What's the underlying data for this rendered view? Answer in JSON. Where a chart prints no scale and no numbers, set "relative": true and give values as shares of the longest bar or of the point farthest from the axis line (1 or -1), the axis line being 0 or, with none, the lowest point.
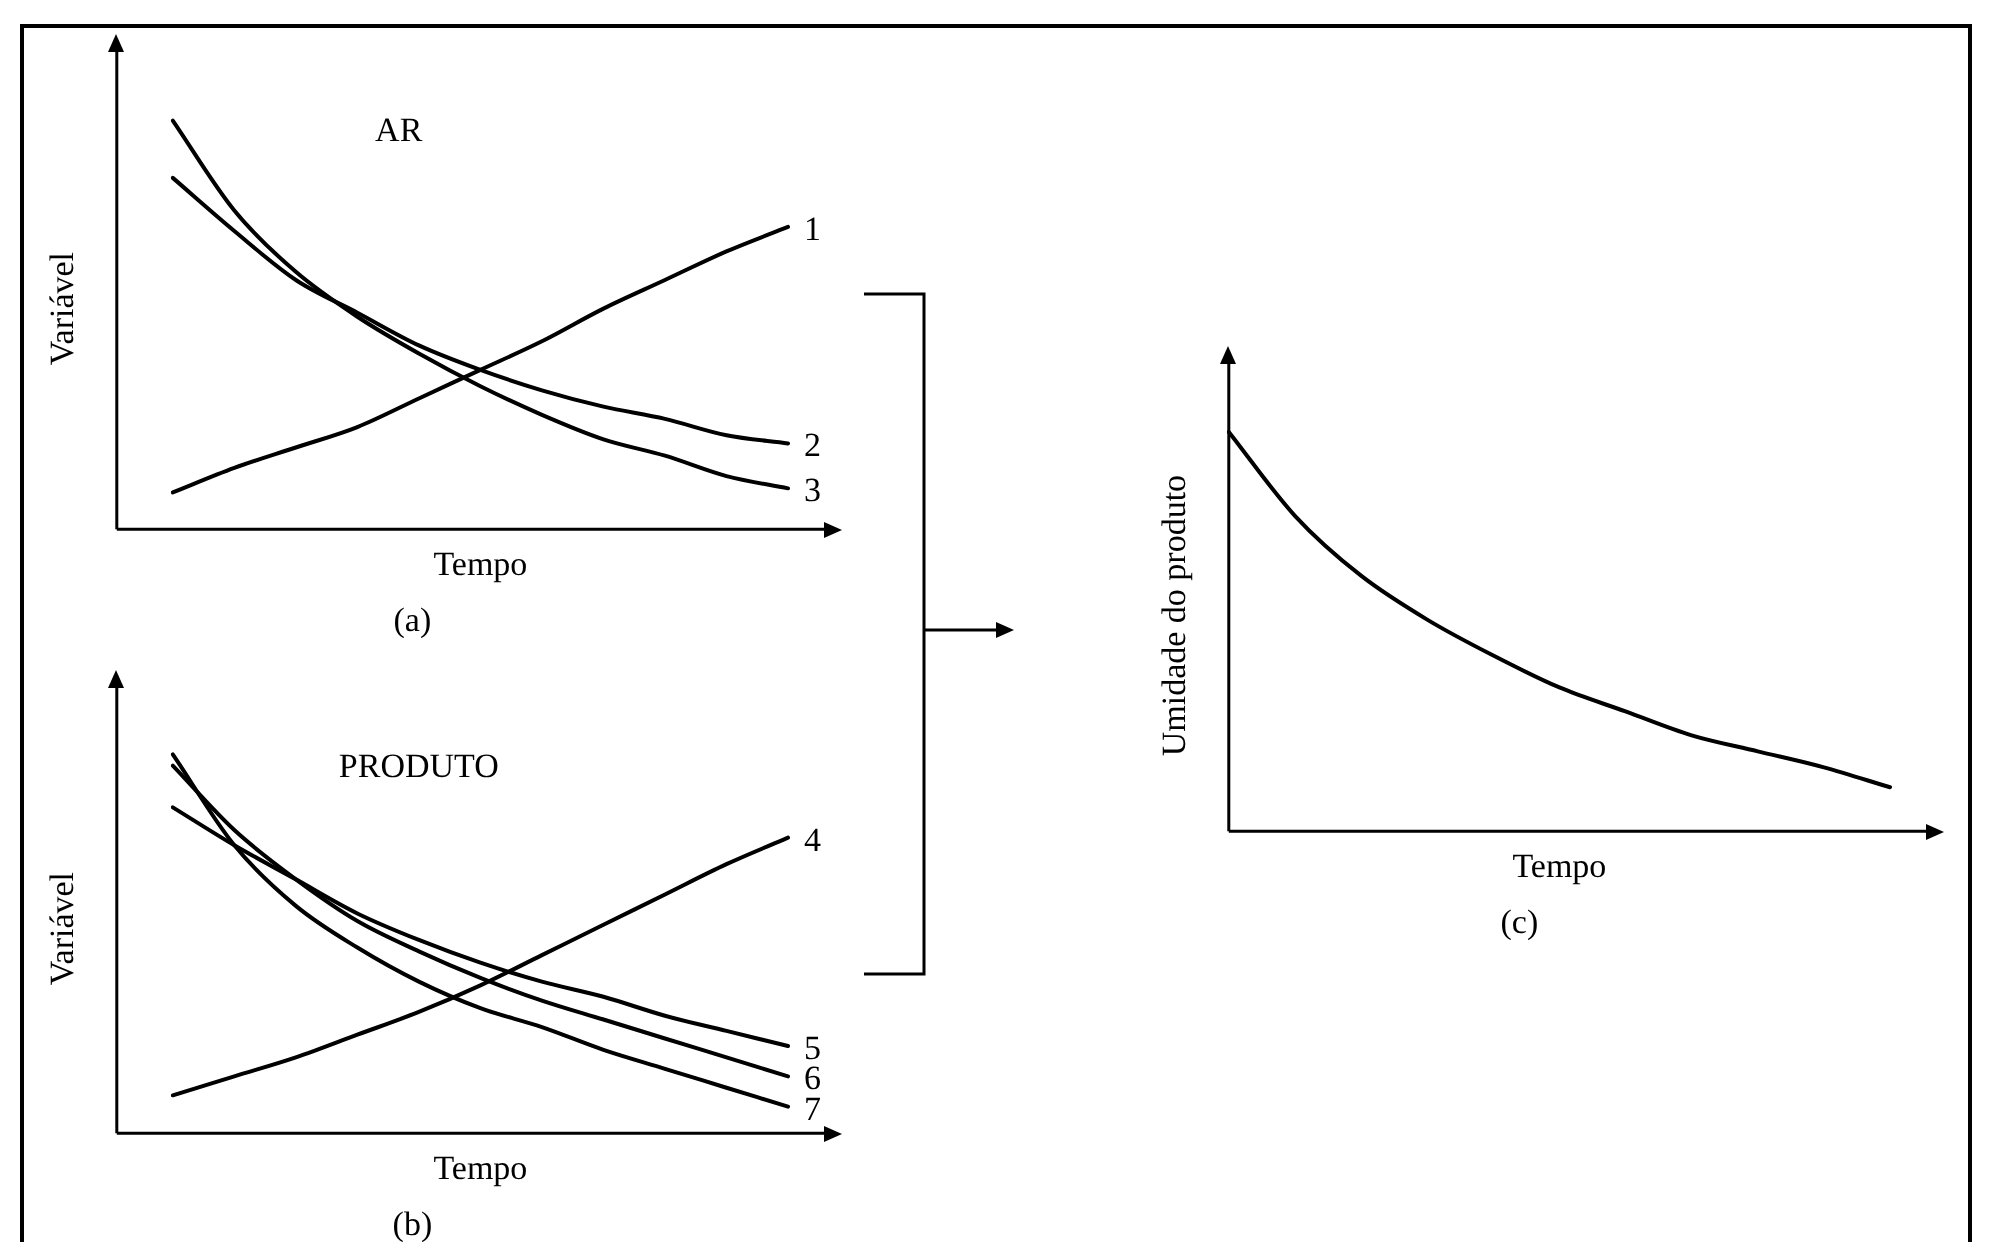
{
  "chart_data": [
    {
      "type": "line",
      "title": "AR",
      "xlabel": "Tempo",
      "ylabel": "Variável",
      "annotations": [
        "(a)"
      ],
      "relative": true,
      "tick_labels": false,
      "categories": [
        null,
        null,
        null,
        null,
        null,
        null,
        null,
        null,
        null,
        null,
        null
      ],
      "series": [
        {
          "name": "1",
          "color": "#000000",
          "values": [
            0.09,
            0.15,
            0.2,
            0.25,
            0.32,
            0.39,
            0.46,
            0.54,
            0.61,
            0.68,
            0.74
          ]
        },
        {
          "name": "2",
          "color": "#000000",
          "values": [
            0.86,
            0.73,
            0.61,
            0.53,
            0.45,
            0.39,
            0.34,
            0.3,
            0.27,
            0.23,
            0.21
          ]
        },
        {
          "name": "3",
          "color": "#000000",
          "values": [
            1,
            0.78,
            0.63,
            0.52,
            0.43,
            0.35,
            0.28,
            0.22,
            0.18,
            0.13,
            0.1
          ]
        }
      ]
    },
    {
      "type": "line",
      "title": "PRODUTO",
      "xlabel": "Tempo",
      "ylabel": "Variável",
      "annotations": [
        "(b)"
      ],
      "relative": true,
      "tick_labels": false,
      "categories": [
        null,
        null,
        null,
        null,
        null,
        null,
        null,
        null,
        null,
        null,
        null
      ],
      "series": [
        {
          "name": "4",
          "color": "#000000",
          "values": [
            0.1,
            0.15,
            0.2,
            0.26,
            0.32,
            0.39,
            0.47,
            0.55,
            0.63,
            0.71,
            0.78
          ]
        },
        {
          "name": "5",
          "color": "#000000",
          "values": [
            0.86,
            0.76,
            0.67,
            0.58,
            0.51,
            0.45,
            0.4,
            0.36,
            0.31,
            0.27,
            0.23
          ]
        },
        {
          "name": "6",
          "color": "#000000",
          "values": [
            0.97,
            0.8,
            0.67,
            0.56,
            0.48,
            0.41,
            0.35,
            0.3,
            0.25,
            0.2,
            0.15
          ]
        },
        {
          "name": "7",
          "color": "#000000",
          "values": [
            1,
            0.76,
            0.6,
            0.49,
            0.4,
            0.33,
            0.28,
            0.22,
            0.17,
            0.12,
            0.07
          ]
        }
      ]
    },
    {
      "type": "line",
      "xlabel": "Tempo",
      "ylabel": "Umidade do produto",
      "annotations": [
        "(c)"
      ],
      "relative": true,
      "tick_labels": false,
      "categories": [
        null,
        null,
        null,
        null,
        null,
        null,
        null,
        null,
        null,
        null,
        null
      ],
      "series": [
        {
          "color": "#000000",
          "values": [
            1,
            0.79,
            0.64,
            0.53,
            0.44,
            0.36,
            0.3,
            0.24,
            0.2,
            0.16,
            0.11
          ]
        }
      ]
    }
  ]
}
